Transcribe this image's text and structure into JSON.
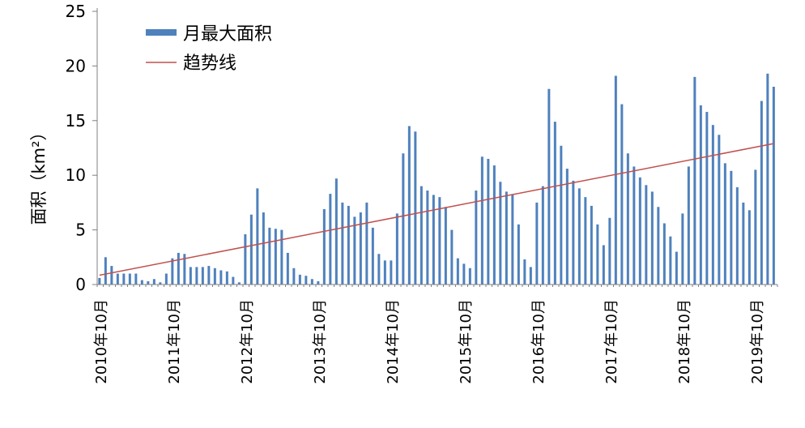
{
  "chart_data": {
    "type": "bar",
    "title": "",
    "ylabel": "面积（km²）",
    "xlabel": "",
    "ylim": [
      0,
      25
    ],
    "yticks": [
      0,
      5,
      10,
      15,
      20,
      25
    ],
    "grid": false,
    "legend_position": "top-left",
    "x_tick_labels": [
      "2010年10月",
      "2011年10月",
      "2012年10月",
      "2013年10月",
      "2014年10月",
      "2015年10月",
      "2016年10月",
      "2017年10月",
      "2018年10月",
      "2019年10月"
    ],
    "series": [
      {
        "name": "月最大面积",
        "kind": "bar",
        "color": "#4f81bd",
        "values": [
          0.6,
          2.5,
          1.7,
          1.0,
          1.0,
          1.0,
          1.0,
          0.4,
          0.3,
          0.5,
          0.2,
          1.0,
          2.4,
          2.9,
          2.8,
          1.6,
          1.6,
          1.6,
          1.7,
          1.5,
          1.3,
          1.2,
          0.7,
          0.2,
          4.6,
          6.4,
          8.8,
          6.6,
          5.2,
          5.1,
          5.0,
          2.9,
          1.5,
          0.9,
          0.8,
          0.5,
          0.3,
          6.9,
          8.3,
          9.7,
          7.5,
          7.2,
          6.2,
          6.6,
          7.5,
          5.2,
          2.8,
          2.2,
          2.2,
          6.5,
          12.0,
          14.5,
          14.0,
          9.0,
          8.6,
          8.2,
          8.0,
          7.1,
          5.0,
          2.4,
          1.9,
          1.5,
          8.6,
          11.7,
          11.5,
          10.9,
          9.4,
          8.5,
          8.2,
          5.5,
          2.3,
          1.6,
          7.5,
          9.0,
          17.9,
          14.9,
          12.7,
          10.6,
          9.5,
          8.8,
          8.0,
          7.2,
          5.5,
          3.6,
          6.1,
          19.1,
          16.5,
          12.0,
          10.8,
          9.8,
          9.1,
          8.5,
          7.1,
          5.6,
          4.4,
          3.0,
          6.5,
          10.8,
          19.0,
          16.4,
          15.8,
          14.6,
          13.7,
          11.1,
          10.4,
          8.9,
          7.5,
          6.8,
          10.5,
          16.8,
          19.3,
          18.1
        ]
      },
      {
        "name": "趋势线",
        "kind": "line",
        "color": "#c0504d",
        "x": [
          0,
          111
        ],
        "values": [
          0.85,
          12.9
        ]
      }
    ]
  }
}
